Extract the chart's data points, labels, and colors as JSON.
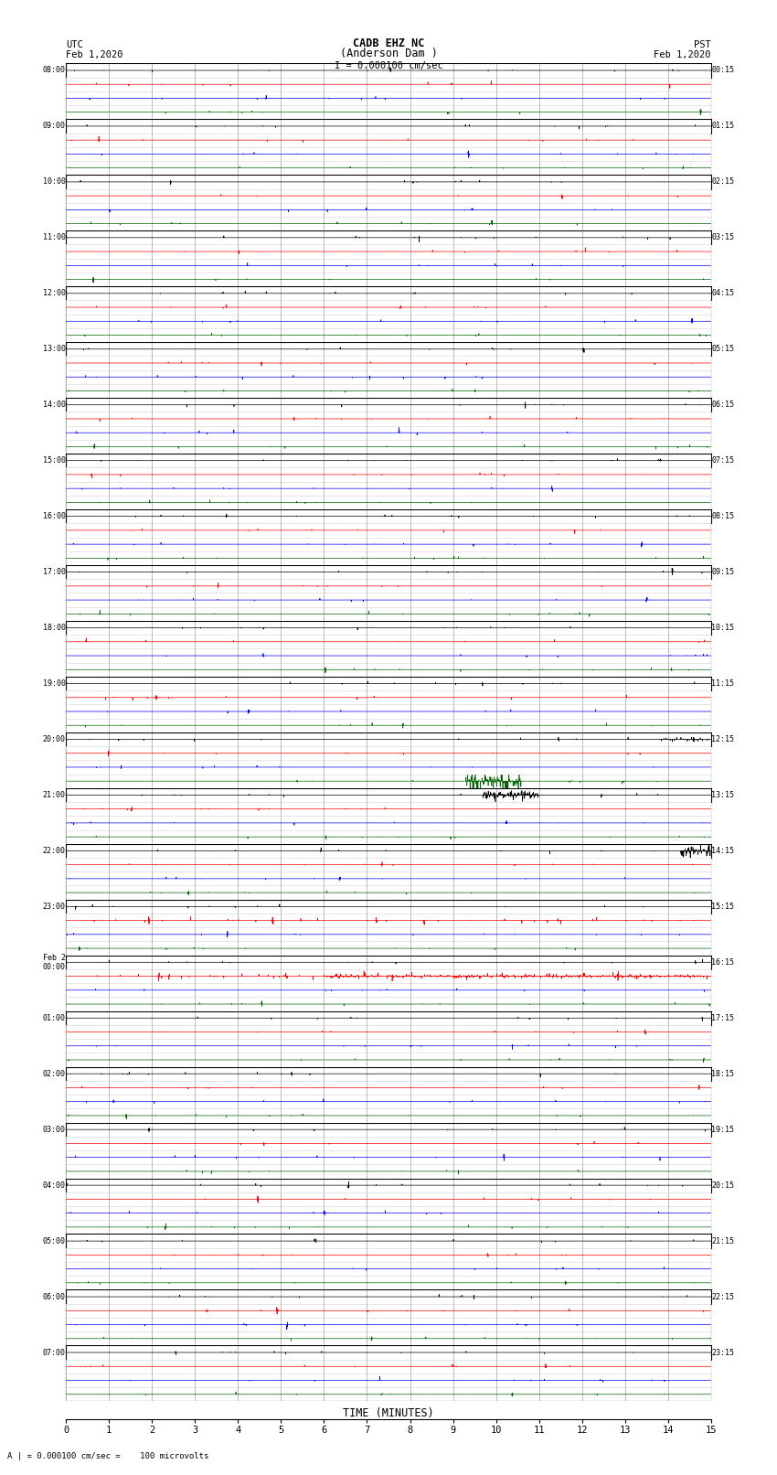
{
  "title_line1": "CADB EHZ NC",
  "title_line2": "(Anderson Dam )",
  "scale_label": "I = 0.000100 cm/sec",
  "left_header_line1": "UTC",
  "left_header_line2": "Feb 1,2020",
  "right_header_line1": "PST",
  "right_header_line2": "Feb 1,2020",
  "bottom_note": "A | = 0.000100 cm/sec =    100 microvolts",
  "xlabel": "TIME (MINUTES)",
  "xlim": [
    0,
    15
  ],
  "xticks": [
    0,
    1,
    2,
    3,
    4,
    5,
    6,
    7,
    8,
    9,
    10,
    11,
    12,
    13,
    14,
    15
  ],
  "num_hours": 24,
  "traces_per_hour": 4,
  "utc_labels": [
    "08:00",
    "09:00",
    "10:00",
    "11:00",
    "12:00",
    "13:00",
    "14:00",
    "15:00",
    "16:00",
    "17:00",
    "18:00",
    "19:00",
    "20:00",
    "21:00",
    "22:00",
    "23:00",
    "Feb 2\n00:00",
    "01:00",
    "02:00",
    "03:00",
    "04:00",
    "05:00",
    "06:00",
    "07:00"
  ],
  "pst_labels": [
    "00:15",
    "01:15",
    "02:15",
    "03:15",
    "04:15",
    "05:15",
    "06:15",
    "07:15",
    "08:15",
    "09:15",
    "10:15",
    "11:15",
    "12:15",
    "13:15",
    "14:15",
    "15:15",
    "16:15",
    "17:15",
    "18:15",
    "19:15",
    "20:15",
    "21:15",
    "22:15",
    "23:15"
  ],
  "trace_colors": [
    "#000000",
    "#ff0000",
    "#0000ff",
    "#006400"
  ],
  "background_color": "#ffffff",
  "grid_major_color": "#000000",
  "grid_minor_color": "#888888",
  "border_color": "#000000",
  "fig_width": 8.5,
  "fig_height": 16.13
}
